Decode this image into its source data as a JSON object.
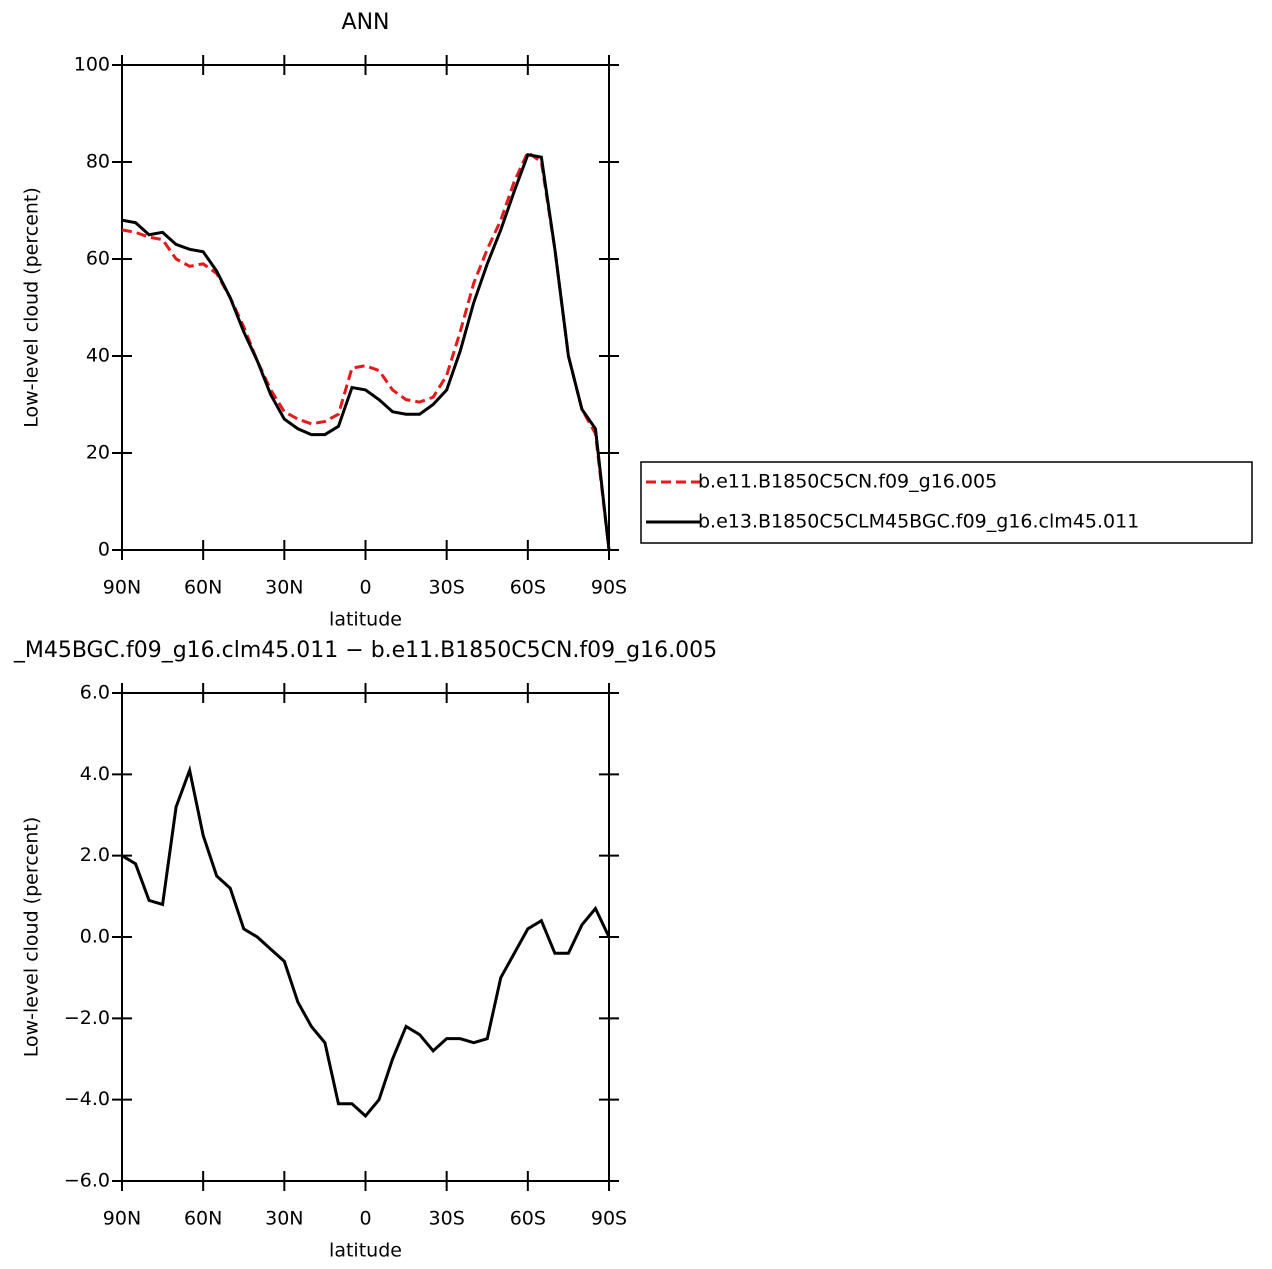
{
  "chart_data": [
    {
      "type": "line",
      "title": "ANN",
      "xlabel": "latitude",
      "ylabel": "Low-level cloud (percent)",
      "x": [
        90,
        85,
        80,
        75,
        70,
        65,
        60,
        55,
        50,
        45,
        40,
        35,
        30,
        25,
        20,
        15,
        10,
        5,
        0,
        -5,
        -10,
        -15,
        -20,
        -25,
        -30,
        -35,
        -40,
        -45,
        -50,
        -55,
        -60,
        -65,
        -70,
        -75,
        -80,
        -85,
        -90
      ],
      "xlim": [
        90,
        -90
      ],
      "xticks": [
        {
          "value": 90,
          "label": "90N"
        },
        {
          "value": 60,
          "label": "60N"
        },
        {
          "value": 30,
          "label": "30N"
        },
        0,
        {
          "value": -30,
          "label": "30S"
        },
        {
          "value": -60,
          "label": "60S"
        },
        {
          "value": -90,
          "label": "90S"
        }
      ],
      "ylim": [
        0,
        100
      ],
      "yticks": [
        0,
        20,
        40,
        60,
        80,
        100
      ],
      "legend": "outside-right",
      "series": [
        {
          "name": "b.e11.B1850C5CN.f09_g16.005",
          "color": "#e41a1c",
          "dashed": true,
          "values": [
            66,
            65.5,
            64.5,
            64,
            60,
            58.5,
            59,
            57,
            52,
            46,
            39,
            33,
            28.5,
            27,
            26,
            26.5,
            28,
            37.5,
            38,
            37,
            33,
            31,
            30.5,
            31.5,
            36,
            45,
            55,
            62,
            68,
            76,
            82,
            80,
            62,
            40,
            29,
            24,
            0
          ]
        },
        {
          "name": "b.e13.B1850C5CLM45BGC.f09_g16.clm45.011",
          "color": "#000000",
          "dashed": false,
          "values": [
            68,
            67.5,
            65,
            65.5,
            63,
            62,
            61.5,
            57.5,
            52,
            45,
            39,
            32,
            27,
            25,
            23.8,
            23.8,
            25.5,
            33.5,
            33,
            31,
            28.5,
            28,
            28,
            30,
            33,
            41,
            51,
            59,
            66,
            74,
            81.5,
            81,
            62,
            40,
            29,
            25,
            0
          ]
        }
      ]
    },
    {
      "type": "line",
      "title": "_M45BGC.f09_g16.clm45.011 − b.e11.B1850C5CN.f09_g16.005",
      "xlabel": "latitude",
      "ylabel": "Low-level cloud (percent)",
      "x": [
        90,
        85,
        80,
        75,
        70,
        65,
        60,
        55,
        50,
        45,
        40,
        35,
        30,
        25,
        20,
        15,
        10,
        5,
        0,
        -5,
        -10,
        -15,
        -20,
        -25,
        -30,
        -35,
        -40,
        -45,
        -50,
        -55,
        -60,
        -65,
        -70,
        -75,
        -80,
        -85,
        -90
      ],
      "xlim": [
        90,
        -90
      ],
      "xticks": [
        {
          "value": 90,
          "label": "90N"
        },
        {
          "value": 60,
          "label": "60N"
        },
        {
          "value": 30,
          "label": "30N"
        },
        0,
        {
          "value": -30,
          "label": "30S"
        },
        {
          "value": -60,
          "label": "60S"
        },
        {
          "value": -90,
          "label": "90S"
        }
      ],
      "ylim": [
        -6,
        6
      ],
      "yticks": [
        {
          "value": -6,
          "label": "−6.0"
        },
        {
          "value": -4,
          "label": "−4.0"
        },
        {
          "value": -2,
          "label": "−2.0"
        },
        {
          "value": 0,
          "label": "0.0"
        },
        {
          "value": 2,
          "label": "2.0"
        },
        {
          "value": 4,
          "label": "4.0"
        },
        {
          "value": 6,
          "label": "6.0"
        }
      ],
      "series": [
        {
          "color": "#000000",
          "dashed": false,
          "values": [
            2.0,
            1.8,
            0.9,
            0.8,
            3.2,
            4.1,
            2.5,
            1.5,
            1.2,
            0.2,
            0.0,
            -0.3,
            -0.6,
            -1.6,
            -2.2,
            -2.6,
            -4.1,
            -4.1,
            -4.4,
            -4.0,
            -3.0,
            -2.2,
            -2.4,
            -2.8,
            -2.5,
            -2.5,
            -2.6,
            -2.5,
            -1.0,
            -0.4,
            0.2,
            0.4,
            -0.4,
            -0.4,
            0.3,
            0.7,
            0.0
          ]
        }
      ]
    }
  ]
}
